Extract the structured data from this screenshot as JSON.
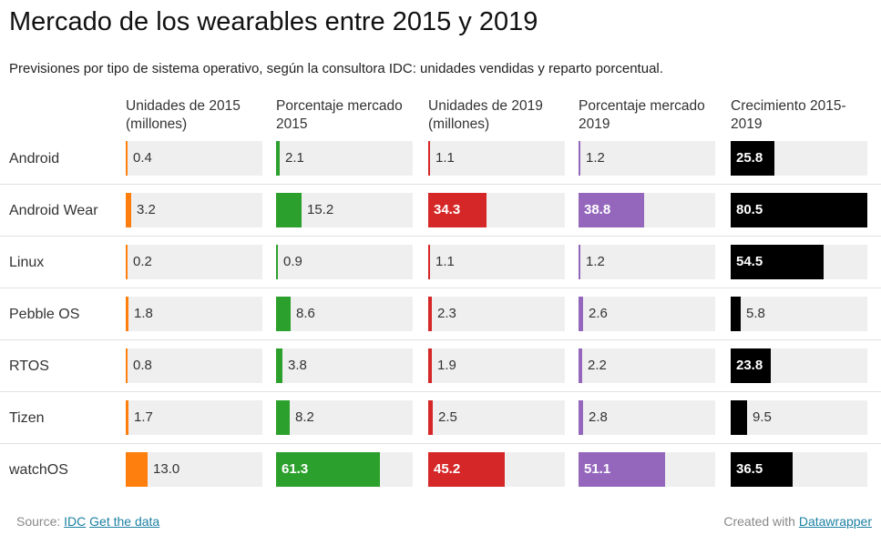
{
  "chart_data": {
    "type": "table",
    "title": "Mercado de los wearables entre 2015 y 2019",
    "subtitle": "Previsiones por tipo de sistema operativo, según la consultora IDC: unidades vendidas y reparto porcentual.",
    "columns": [
      {
        "label": "Unidades de 2015 (millones)",
        "color": "#ff7f0e",
        "max": 80.5
      },
      {
        "label": "Porcentaje mercado 2015",
        "color": "#2ca02c",
        "max": 80.5
      },
      {
        "label": "Unidades de 2019 (millones)",
        "color": "#d62728",
        "max": 80.5
      },
      {
        "label": "Porcentaje mercado 2019",
        "color": "#9467bd",
        "max": 80.5
      },
      {
        "label": "Crecimiento 2015-2019",
        "color": "#000000",
        "max": 80.5
      }
    ],
    "rows": [
      {
        "name": "Android",
        "values": [
          "0.4",
          "2.1",
          "1.1",
          "1.2",
          "25.8"
        ]
      },
      {
        "name": "Android Wear",
        "values": [
          "3.2",
          "15.2",
          "34.3",
          "38.8",
          "80.5"
        ]
      },
      {
        "name": "Linux",
        "values": [
          "0.2",
          "0.9",
          "1.1",
          "1.2",
          "54.5"
        ]
      },
      {
        "name": "Pebble OS",
        "values": [
          "1.8",
          "8.6",
          "2.3",
          "2.6",
          "5.8"
        ]
      },
      {
        "name": "RTOS",
        "values": [
          "0.8",
          "3.8",
          "1.9",
          "2.2",
          "23.8"
        ]
      },
      {
        "name": "Tizen",
        "values": [
          "1.7",
          "8.2",
          "2.5",
          "2.8",
          "9.5"
        ]
      },
      {
        "name": "watchOS",
        "values": [
          "13.0",
          "61.3",
          "45.2",
          "51.1",
          "36.5"
        ]
      }
    ]
  },
  "footer": {
    "source_prefix": "Source:",
    "source_link": "IDC",
    "data_link": "Get the data",
    "created_prefix": "Created with",
    "created_link": "Datawrapper"
  }
}
